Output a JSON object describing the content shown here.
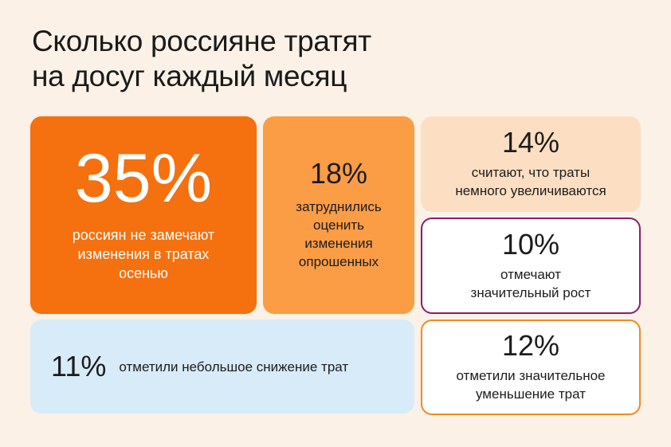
{
  "title": {
    "line1": "Сколько россияне тратят",
    "line2": "на досуг каждый месяц"
  },
  "cards": [
    {
      "percent": "35%",
      "text": "россиян не замечают\nизменения в тратах\nосенью",
      "color": "#f5700e"
    },
    {
      "percent": "18%",
      "text": "затруднились\nоценить\nизменения\nопрошенных",
      "color": "#fa9d45"
    },
    {
      "percent": "14%",
      "text": "считают, что траты\nнемного увеличиваются",
      "color": "#fcdfc2"
    },
    {
      "percent": "10%",
      "text": "отмечают\nзначительный рост",
      "color": "#8a1d6e"
    },
    {
      "percent": "11%",
      "text": "отметили небольшое снижение трат",
      "color": "#d8ebf9"
    },
    {
      "percent": "12%",
      "text": "отметили значительное\nуменьшение трат",
      "color": "#f08a24"
    }
  ]
}
